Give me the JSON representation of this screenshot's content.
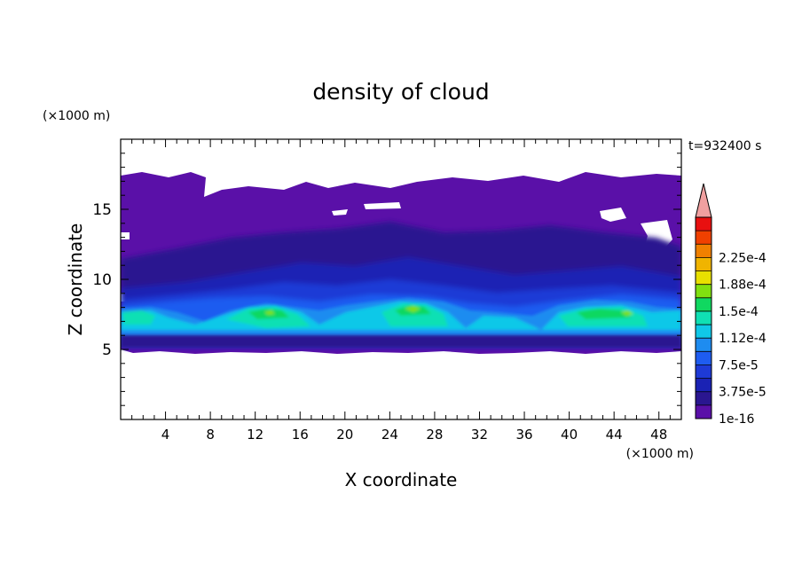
{
  "chart_data": {
    "type": "heatmap",
    "title": "density of cloud",
    "xlabel": "X coordinate",
    "ylabel": "Z coordinate",
    "x_unit": "(×1000 m)",
    "y_unit": "(×1000 m)",
    "time_label": "t=932400 s",
    "xlim": [
      0,
      50
    ],
    "ylim": [
      0,
      20
    ],
    "x_ticks": [
      4,
      8,
      12,
      16,
      20,
      24,
      28,
      32,
      36,
      40,
      44,
      48
    ],
    "y_ticks": [
      5,
      10,
      15
    ],
    "grid": false,
    "colorbar": {
      "levels": [
        1e-16,
        1.875e-05,
        3.75e-05,
        5.625e-05,
        7.5e-05,
        9.375e-05,
        0.0001125,
        0.00013125,
        0.00015,
        0.00016875,
        0.0001875,
        0.00020625,
        0.000225,
        0.00024375
      ],
      "labels": [
        "1e-16",
        "3.75e-5",
        "7.5e-5",
        "1.12e-4",
        "1.5e-4",
        "1.88e-4",
        "2.25e-4"
      ],
      "colors": [
        "#5a10a8",
        "#2a1690",
        "#1a22b4",
        "#1e3ad6",
        "#1e5cf0",
        "#1e8cf0",
        "#10c8e8",
        "#10e0b4",
        "#10d860",
        "#80e010",
        "#e8e000",
        "#f0b400",
        "#f08000",
        "#f04000",
        "#e81010"
      ],
      "overflow_color": "#f0a0a0",
      "extend": "max"
    },
    "field": {
      "cloud_base_z": 5.0,
      "cloud_top_z_range": [
        16.0,
        17.5
      ],
      "max_density_approx": 0.00016,
      "features": [
        {
          "name": "dense arch",
          "x_range": [
            8,
            20
          ],
          "z_peak": 8.1,
          "max_density": 0.00015
        },
        {
          "name": "dense arch",
          "x_range": [
            21,
            31
          ],
          "z_peak": 8.3,
          "max_density": 0.00016
        },
        {
          "name": "dense arch",
          "x_range": [
            37,
            48
          ],
          "z_peak": 8.1,
          "max_density": 0.00015
        },
        {
          "name": "dense layer",
          "x_range": [
            0,
            5
          ],
          "z_peak": 7.8,
          "max_density": 0.00012
        }
      ]
    }
  }
}
